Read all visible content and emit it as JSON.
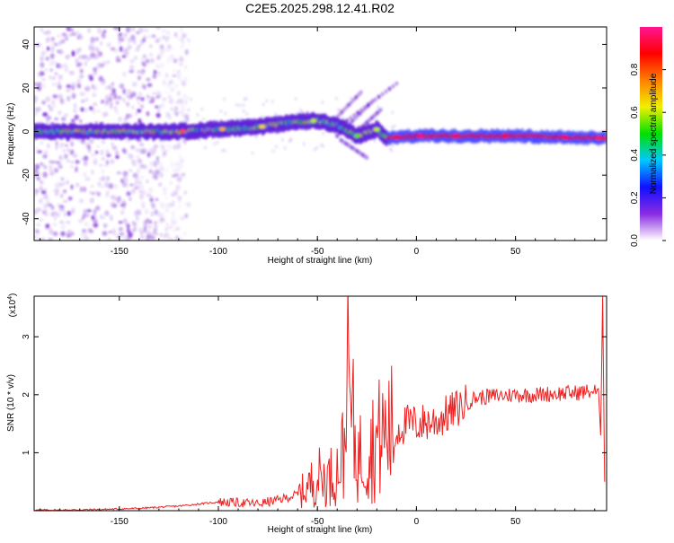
{
  "title": "C2E5.2025.298.12.41.R02",
  "colors": {
    "snr_line": "#ee2020",
    "frame": "#000000",
    "background": "#ffffff"
  },
  "chart_data": [
    {
      "type": "heatmap",
      "name": "spectrogram",
      "xlabel": "Height of straight line (km)",
      "ylabel": "Frequency (Hz)",
      "xlim": [
        -193,
        96
      ],
      "ylim": [
        -50,
        48
      ],
      "xticks": [
        -150,
        -100,
        -50,
        0,
        50
      ],
      "yticks": [
        -40,
        -20,
        0,
        20,
        40
      ],
      "colorbar": {
        "label": "Normalized spectral amplitude",
        "range": [
          0,
          1
        ],
        "ticks": [
          0.0,
          0.2,
          0.4,
          0.6,
          0.8
        ],
        "tick_labels": [
          "0.0",
          "0.2",
          "0.4",
          "0.6",
          "0.8"
        ],
        "colormap": [
          "#ffffff",
          "#8a2be2",
          "#1010ff",
          "#00c8ff",
          "#00e000",
          "#f0f000",
          "#ff8000",
          "#ff0000",
          "#ff1493"
        ]
      },
      "ridge": {
        "description": "dominant frequency track",
        "points": [
          [
            -193,
            0
          ],
          [
            -150,
            0
          ],
          [
            -120,
            0
          ],
          [
            -100,
            1
          ],
          [
            -80,
            2
          ],
          [
            -65,
            4
          ],
          [
            -50,
            5
          ],
          [
            -40,
            3
          ],
          [
            -30,
            -2
          ],
          [
            -20,
            1
          ],
          [
            -15,
            -3
          ],
          [
            0,
            -2
          ],
          [
            50,
            -2
          ],
          [
            95,
            -3
          ]
        ]
      },
      "noise_region_xlim": [
        -193,
        -130
      ]
    },
    {
      "type": "line",
      "name": "snr",
      "xlabel": "Height of straight line (km)",
      "ylabel": "SNR (10 * v/v)",
      "y_scale_label": "(x10",
      "y_scale_exponent": "4",
      "xlim": [
        -193,
        96
      ],
      "ylim": [
        0,
        3.7
      ],
      "xticks": [
        -150,
        -100,
        -50,
        0,
        50
      ],
      "yticks": [
        1,
        2,
        3
      ],
      "y_unit_multiplier": 10000,
      "series": [
        {
          "name": "SNR",
          "x": [
            -193,
            -180,
            -160,
            -140,
            -120,
            -100,
            -90,
            -80,
            -70,
            -60,
            -55,
            -50,
            -45,
            -40,
            -36,
            -35,
            -30,
            -25,
            -20,
            -15,
            -10,
            -5,
            0,
            10,
            20,
            30,
            40,
            50,
            60,
            70,
            80,
            85,
            90,
            92,
            93,
            94,
            95
          ],
          "values": [
            0.01,
            0.01,
            0.02,
            0.04,
            0.08,
            0.15,
            0.14,
            0.12,
            0.18,
            0.28,
            0.4,
            0.6,
            0.55,
            0.7,
            1.1,
            2.2,
            0.9,
            1.05,
            1.2,
            1.35,
            1.4,
            1.5,
            1.5,
            1.55,
            1.75,
            1.95,
            1.98,
            2.0,
            2.0,
            2.02,
            2.03,
            2.05,
            2.06,
            2.0,
            1.3,
            3.7,
            0.5
          ]
        }
      ]
    }
  ]
}
